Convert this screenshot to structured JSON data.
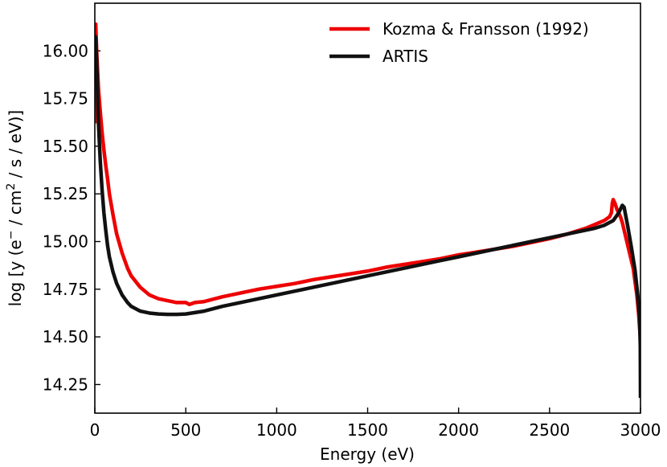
{
  "chart_data": {
    "type": "line",
    "title": "",
    "xlabel": "Energy (eV)",
    "ylabel_parts": [
      "log [y (e",
      "−",
      " / cm",
      "2",
      " / s / eV)]"
    ],
    "xlim": [
      0,
      3000
    ],
    "ylim": [
      14.1,
      16.25
    ],
    "xticks": [
      0,
      500,
      1000,
      1500,
      2000,
      2500,
      3000
    ],
    "xtick_labels": [
      "0",
      "500",
      "1000",
      "1500",
      "2000",
      "2500",
      "3000"
    ],
    "yticks": [
      14.25,
      14.5,
      14.75,
      15.0,
      15.25,
      15.5,
      15.75,
      16.0
    ],
    "ytick_labels": [
      "14.25",
      "14.50",
      "14.75",
      "15.00",
      "15.25",
      "15.50",
      "15.75",
      "16.00"
    ],
    "grid": false,
    "legend_position": "top-right",
    "series": [
      {
        "name": "Kozma & Fransson (1992)",
        "color": "#ee0000",
        "x": [
          0,
          5,
          10,
          15,
          20,
          30,
          40,
          50,
          60,
          70,
          80,
          100,
          120,
          150,
          180,
          200,
          250,
          300,
          350,
          400,
          450,
          500,
          520,
          550,
          600,
          700,
          800,
          900,
          1000,
          1100,
          1200,
          1300,
          1400,
          1500,
          1600,
          1700,
          1800,
          1900,
          2000,
          2100,
          2200,
          2300,
          2400,
          2500,
          2600,
          2700,
          2800,
          2830,
          2840,
          2845,
          2850,
          2860,
          2870,
          2880,
          2890,
          2900,
          2920,
          2940,
          2960,
          2980,
          2990,
          3000
        ],
        "y": [
          15.62,
          16.14,
          16.0,
          15.9,
          15.8,
          15.68,
          15.57,
          15.48,
          15.4,
          15.33,
          15.25,
          15.14,
          15.04,
          14.94,
          14.86,
          14.82,
          14.76,
          14.72,
          14.7,
          14.69,
          14.68,
          14.68,
          14.67,
          14.68,
          14.685,
          14.71,
          14.73,
          14.75,
          14.765,
          14.78,
          14.8,
          14.815,
          14.83,
          14.845,
          14.865,
          14.88,
          14.895,
          14.91,
          14.93,
          14.945,
          14.96,
          14.975,
          14.995,
          15.015,
          15.04,
          15.07,
          15.11,
          15.13,
          15.15,
          15.2,
          15.22,
          15.2,
          15.17,
          15.15,
          15.13,
          15.1,
          15.02,
          14.94,
          14.86,
          14.72,
          14.62,
          14.48
        ]
      },
      {
        "name": "ARTIS",
        "color": "#111111",
        "x": [
          0,
          5,
          10,
          15,
          20,
          30,
          40,
          50,
          60,
          70,
          80,
          100,
          120,
          150,
          180,
          200,
          250,
          300,
          350,
          400,
          450,
          500,
          600,
          700,
          800,
          900,
          1000,
          1100,
          1200,
          1300,
          1400,
          1500,
          1600,
          1700,
          1800,
          1900,
          2000,
          2100,
          2200,
          2300,
          2400,
          2500,
          2600,
          2700,
          2750,
          2800,
          2850,
          2880,
          2900,
          2910,
          2930,
          2950,
          2970,
          2985,
          2995,
          2999,
          3000
        ],
        "y": [
          16.08,
          16.07,
          15.95,
          15.78,
          15.62,
          15.42,
          15.27,
          15.15,
          15.06,
          14.98,
          14.92,
          14.84,
          14.78,
          14.72,
          14.68,
          14.66,
          14.635,
          14.625,
          14.62,
          14.618,
          14.618,
          14.62,
          14.635,
          14.66,
          14.68,
          14.7,
          14.72,
          14.74,
          14.76,
          14.78,
          14.8,
          14.82,
          14.84,
          14.86,
          14.88,
          14.9,
          14.92,
          14.94,
          14.96,
          14.98,
          15.0,
          15.02,
          15.04,
          15.06,
          15.07,
          15.085,
          15.11,
          15.15,
          15.19,
          15.18,
          15.08,
          14.97,
          14.85,
          14.72,
          14.6,
          14.45,
          14.18
        ]
      }
    ]
  }
}
